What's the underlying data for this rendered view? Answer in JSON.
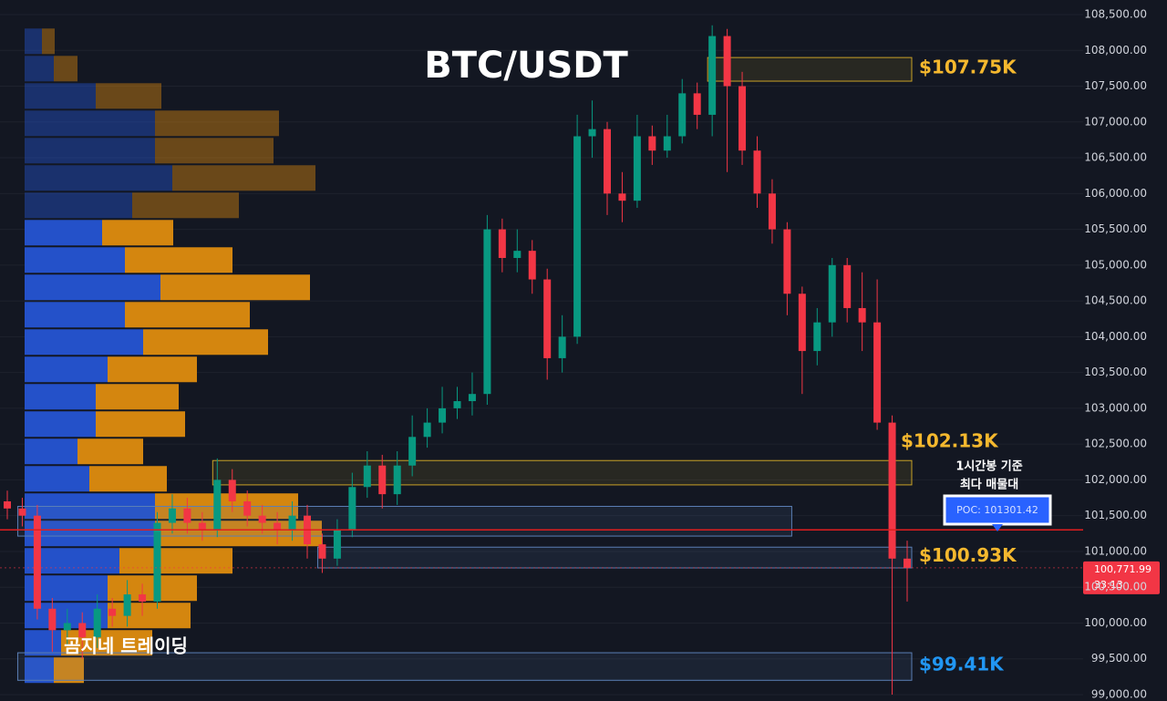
{
  "chart_data": {
    "type": "candlestick",
    "title": "BTC/USDT",
    "watermark": "곰지네 트레이딩",
    "open": [
      101700,
      101600,
      101500,
      100200,
      99900,
      100000,
      99800,
      100200,
      100100,
      100400,
      100300,
      101400,
      101600,
      101400,
      101300,
      102000,
      101700,
      101500,
      101400,
      101300,
      101500,
      101100,
      100900,
      101300,
      101900,
      102200,
      101800,
      102200,
      102600,
      102800,
      103000,
      103100,
      103200,
      105500,
      105100,
      105200,
      104800,
      103700,
      104000,
      106800,
      106900,
      106000,
      105900,
      106800,
      106600,
      106800,
      107400,
      107100,
      108200,
      107500,
      106600,
      106000,
      105500,
      104600,
      103800,
      104200,
      105000,
      104400,
      104200,
      102800,
      100900
    ],
    "high": [
      101850,
      101750,
      101650,
      100350,
      100200,
      100150,
      100400,
      100350,
      100600,
      100550,
      101550,
      101800,
      101750,
      101550,
      102300,
      102150,
      101850,
      101650,
      101550,
      101700,
      101650,
      101250,
      101450,
      102100,
      102400,
      102350,
      102400,
      102900,
      103000,
      103300,
      103300,
      103500,
      105700,
      105650,
      105500,
      105350,
      104950,
      104300,
      107100,
      107300,
      107000,
      106300,
      107100,
      106950,
      107100,
      107600,
      107550,
      108350,
      108300,
      107700,
      106800,
      106200,
      105600,
      104700,
      104400,
      105100,
      105100,
      104900,
      104800,
      102900,
      101150
    ],
    "low": [
      101450,
      101350,
      100050,
      99600,
      99700,
      99500,
      99650,
      99950,
      99950,
      100100,
      100200,
      101250,
      101250,
      101150,
      101200,
      101550,
      101350,
      101250,
      101100,
      101150,
      100900,
      100700,
      100800,
      101200,
      101750,
      101600,
      101650,
      102050,
      102450,
      102650,
      102850,
      102900,
      103050,
      104900,
      104900,
      104600,
      103400,
      103500,
      103900,
      106500,
      105700,
      105600,
      105800,
      106400,
      106500,
      106700,
      106900,
      106800,
      106300,
      106400,
      105800,
      105300,
      104300,
      103200,
      103600,
      104000,
      104200,
      103800,
      102700,
      99000,
      100300
    ],
    "close": [
      101600,
      101500,
      100200,
      99900,
      100000,
      99800,
      100200,
      100100,
      100400,
      100300,
      101400,
      101600,
      101400,
      101300,
      102000,
      101700,
      101500,
      101400,
      101300,
      101500,
      101100,
      100900,
      101300,
      101900,
      102200,
      101800,
      102200,
      102600,
      102800,
      103000,
      103100,
      103200,
      105500,
      105100,
      105200,
      104800,
      103700,
      104000,
      106800,
      106900,
      106000,
      105900,
      106800,
      106600,
      106800,
      107400,
      107100,
      108200,
      107500,
      106600,
      106000,
      105500,
      104600,
      103800,
      104200,
      105000,
      104400,
      104200,
      102800,
      100900,
      100772
    ],
    "up_color": "#089981",
    "down_color": "#f23645",
    "ylim": [
      99000,
      108500
    ],
    "yticks": [
      {
        "value": 99000,
        "label": "99,000.00"
      },
      {
        "value": 99500,
        "label": "99,500.00"
      },
      {
        "value": 100000,
        "label": "100,000.00"
      },
      {
        "value": 100500,
        "label": "100,500.00"
      },
      {
        "value": 101000,
        "label": "101,000.00"
      },
      {
        "value": 101500,
        "label": "101,500.00"
      },
      {
        "value": 102000,
        "label": "102,000.00"
      },
      {
        "value": 102500,
        "label": "102,500.00"
      },
      {
        "value": 103000,
        "label": "103,000.00"
      },
      {
        "value": 103500,
        "label": "103,500.00"
      },
      {
        "value": 104000,
        "label": "104,000.00"
      },
      {
        "value": 104500,
        "label": "104,500.00"
      },
      {
        "value": 105000,
        "label": "105,000.00"
      },
      {
        "value": 105500,
        "label": "105,500.00"
      },
      {
        "value": 106000,
        "label": "106,000.00"
      },
      {
        "value": 106500,
        "label": "106,500.00"
      },
      {
        "value": 107000,
        "label": "107,000.00"
      },
      {
        "value": 107500,
        "label": "107,500.00"
      },
      {
        "value": 108000,
        "label": "108,000.00"
      },
      {
        "value": 108500,
        "label": "108,500.00"
      }
    ],
    "grid": true,
    "volume_profile": {
      "bins": [
        99150,
        99532,
        99914,
        100296,
        100678,
        101060,
        101442,
        101824,
        102206,
        102588,
        102970,
        103352,
        103734,
        104116,
        104498,
        104880,
        105262,
        105644,
        106026,
        106408,
        106790,
        107172,
        107554,
        107936,
        108318
      ],
      "buy": [
        32,
        40,
        91,
        91,
        104,
        143,
        143,
        71,
        58,
        78,
        78,
        91,
        130,
        110,
        149,
        110,
        85,
        118,
        162,
        143,
        143,
        78,
        32,
        19
      ],
      "sell": [
        33,
        100,
        91,
        98,
        124,
        183,
        157,
        85,
        72,
        98,
        91,
        98,
        137,
        137,
        164,
        118,
        78,
        117,
        157,
        130,
        136,
        72,
        26,
        14
      ],
      "buy_color": "#2451c9",
      "sell_color": "#d4860f",
      "value_area_high": 105644
    },
    "zones": [
      {
        "top": 107900,
        "bottom": 107570,
        "start": 47,
        "end": 60,
        "color": "#c9a227",
        "value": 107750,
        "label": "$107.75K",
        "label_color": "#f5b82e",
        "label_position": "right"
      },
      {
        "top": 102270,
        "bottom": 101930,
        "start": 14,
        "end": 60,
        "color": "#c9a227",
        "value": 102130,
        "label": "$102.13K",
        "label_color": "#f5b82e",
        "label_position": "above"
      },
      {
        "top": 101630,
        "bottom": 101215,
        "start": 1,
        "end": 52,
        "color": "#5b7fb5"
      },
      {
        "top": 101060,
        "bottom": 100770,
        "start": 21,
        "end": 60,
        "color": "#5b7fb5",
        "value": 100930,
        "label": "$100.93K",
        "label_color": "#f5b82e",
        "label_position": "right"
      },
      {
        "top": 99585,
        "bottom": 99200,
        "start": 1,
        "end": 60,
        "color": "#5b7fb5",
        "value": 99410,
        "label": "$99.41K",
        "label_color": "#2196f3",
        "label_position": "right"
      }
    ],
    "poc": {
      "value": 101301.42,
      "label": "POC: 101301.42",
      "color": "#e01e1e"
    },
    "annotation": [
      "1시간봉 기준",
      "최다 매물대"
    ],
    "last_price": {
      "value": 100771.99,
      "label": "100,771.99",
      "countdown": "33:13",
      "color": "#f23645"
    }
  }
}
